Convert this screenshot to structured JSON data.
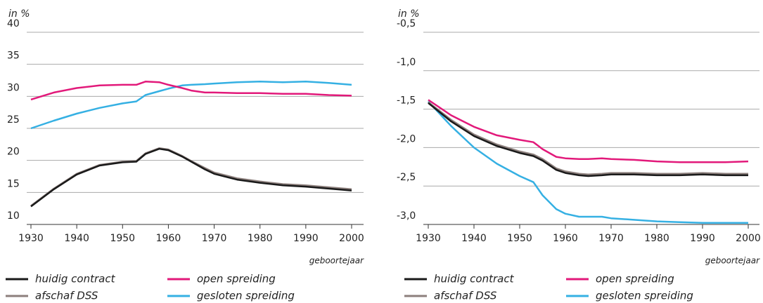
{
  "chart_data": [
    {
      "type": "line",
      "y_label": "in %",
      "x_label": "geboortejaar",
      "grid": true,
      "x": [
        1930,
        1935,
        1940,
        1945,
        1950,
        1953,
        1955,
        1958,
        1960,
        1963,
        1965,
        1968,
        1970,
        1975,
        1980,
        1985,
        1990,
        1995,
        2000
      ],
      "xlim": [
        1930,
        2000
      ],
      "xticks": [
        1930,
        1940,
        1950,
        1960,
        1970,
        1980,
        1990,
        2000
      ],
      "ylim": [
        10,
        40
      ],
      "yticks": [
        10,
        15,
        20,
        25,
        30,
        35,
        40
      ],
      "series": [
        {
          "name": "huidig contract",
          "color": "#1a1a1a",
          "values": [
            12.8,
            15.5,
            17.8,
            19.2,
            19.7,
            19.8,
            21.0,
            21.8,
            21.6,
            20.6,
            19.8,
            18.6,
            17.9,
            17.0,
            16.5,
            16.1,
            15.9,
            15.6,
            15.3
          ]
        },
        {
          "name": "afschaf DSS",
          "color": "#8c7f7c",
          "values": [
            12.9,
            15.6,
            17.9,
            19.3,
            19.8,
            19.9,
            21.1,
            21.9,
            21.7,
            20.7,
            19.9,
            18.8,
            18.1,
            17.2,
            16.7,
            16.3,
            16.1,
            15.8,
            15.5
          ]
        },
        {
          "name": "open spreiding",
          "color": "#e2197a",
          "values": [
            29.5,
            30.6,
            31.3,
            31.7,
            31.8,
            31.8,
            32.3,
            32.2,
            31.8,
            31.3,
            30.9,
            30.6,
            30.6,
            30.5,
            30.5,
            30.4,
            30.4,
            30.2,
            30.1
          ]
        },
        {
          "name": "gesloten spreiding",
          "color": "#35b0e3",
          "values": [
            25.0,
            26.2,
            27.3,
            28.2,
            28.9,
            29.2,
            30.2,
            30.8,
            31.2,
            31.7,
            31.8,
            31.9,
            32.0,
            32.2,
            32.3,
            32.2,
            32.3,
            32.1,
            31.8
          ]
        }
      ]
    },
    {
      "type": "line",
      "y_label": "in %",
      "x_label": "geboortejaar",
      "grid": true,
      "x": [
        1930,
        1935,
        1940,
        1945,
        1950,
        1953,
        1955,
        1958,
        1960,
        1963,
        1965,
        1968,
        1970,
        1975,
        1980,
        1985,
        1990,
        1995,
        2000
      ],
      "xlim": [
        1930,
        2000
      ],
      "xticks": [
        1930,
        1940,
        1950,
        1960,
        1970,
        1980,
        1990,
        2000
      ],
      "ylim": [
        -3.0,
        -0.5
      ],
      "yticks": [
        {
          "value": -3.0,
          "label": "-3,0"
        },
        {
          "value": -2.5,
          "label": "-2,5"
        },
        {
          "value": -2.0,
          "label": "-2,0"
        },
        {
          "value": -1.5,
          "label": "-1,5"
        },
        {
          "value": -1.0,
          "label": "-1,0"
        },
        {
          "value": -0.5,
          "label": "-0,5"
        }
      ],
      "series": [
        {
          "name": "huidig contract",
          "color": "#1a1a1a",
          "values": [
            -1.42,
            -1.66,
            -1.85,
            -1.98,
            -2.07,
            -2.11,
            -2.17,
            -2.29,
            -2.33,
            -2.36,
            -2.37,
            -2.36,
            -2.35,
            -2.35,
            -2.36,
            -2.36,
            -2.35,
            -2.36,
            -2.36
          ]
        },
        {
          "name": "afschaf DSS",
          "color": "#8c7f7c",
          "values": [
            -1.41,
            -1.64,
            -1.83,
            -1.96,
            -2.05,
            -2.09,
            -2.15,
            -2.27,
            -2.31,
            -2.34,
            -2.35,
            -2.34,
            -2.33,
            -2.33,
            -2.34,
            -2.34,
            -2.33,
            -2.34,
            -2.34
          ]
        },
        {
          "name": "open spreiding",
          "color": "#e2197a",
          "values": [
            -1.38,
            -1.58,
            -1.73,
            -1.84,
            -1.9,
            -1.93,
            -2.02,
            -2.12,
            -2.14,
            -2.15,
            -2.15,
            -2.14,
            -2.15,
            -2.16,
            -2.18,
            -2.19,
            -2.19,
            -2.19,
            -2.18
          ]
        },
        {
          "name": "gesloten spreiding",
          "color": "#35b0e3",
          "values": [
            -1.4,
            -1.72,
            -2.0,
            -2.21,
            -2.37,
            -2.45,
            -2.62,
            -2.8,
            -2.86,
            -2.9,
            -2.9,
            -2.9,
            -2.92,
            -2.94,
            -2.96,
            -2.97,
            -2.98,
            -2.98,
            -2.98
          ]
        }
      ]
    }
  ]
}
